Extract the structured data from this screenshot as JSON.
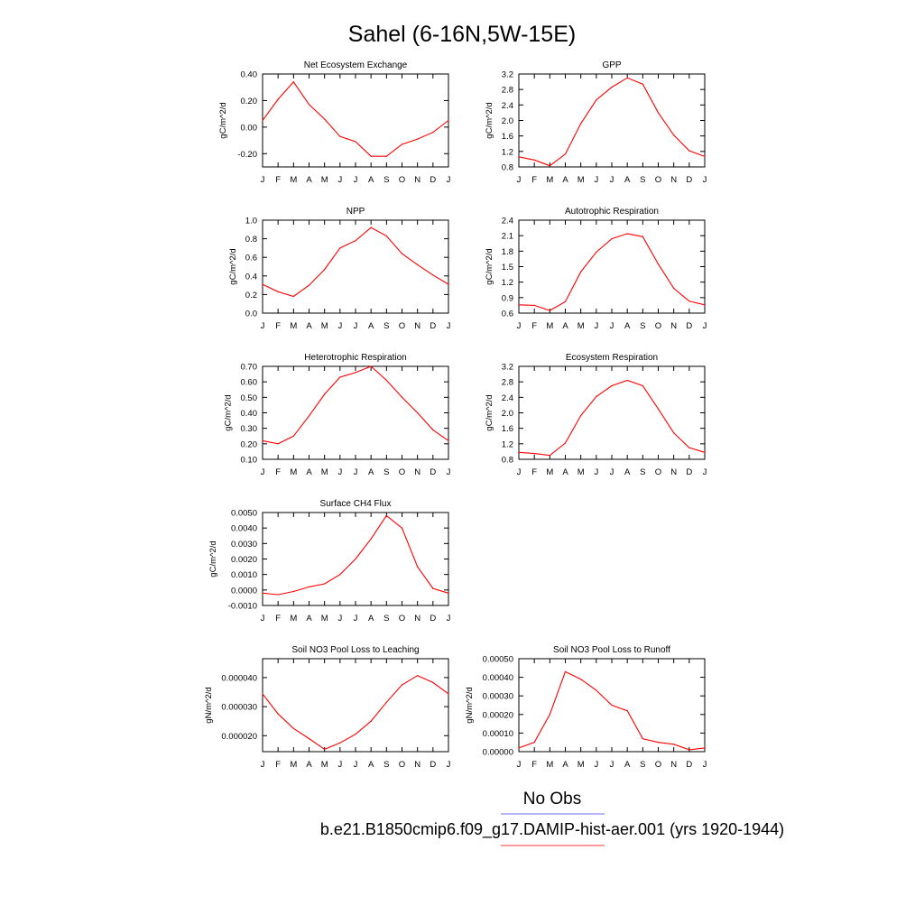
{
  "figure": {
    "title": "Sahel (6-16N,5W-15E)",
    "legend": [
      {
        "label": "No Obs",
        "color": "#6b6bff"
      },
      {
        "label": "b.e21.B1850cmip6.f09_g17.DAMIP-hist-aer.001 (yrs 1920-1944)",
        "color": "#ff3030"
      }
    ]
  },
  "chart_data": [
    {
      "type": "line",
      "title": "Net Ecosystem Exchange",
      "ylabel": "gC/m^2/d",
      "categories": [
        "J",
        "F",
        "M",
        "A",
        "M",
        "J",
        "J",
        "A",
        "S",
        "O",
        "N",
        "D",
        "J"
      ],
      "ylim": [
        -0.3,
        0.4
      ],
      "yticks": [
        "0.40",
        "0.20",
        "0.00",
        "-0.20"
      ],
      "series": [
        {
          "color": "#ff0000",
          "values": [
            0.05,
            0.21,
            0.34,
            0.17,
            0.06,
            -0.07,
            -0.11,
            -0.22,
            -0.22,
            -0.13,
            -0.09,
            -0.04,
            0.05
          ]
        }
      ]
    },
    {
      "type": "line",
      "title": "GPP",
      "ylabel": "gC/m^2/d",
      "categories": [
        "J",
        "F",
        "M",
        "A",
        "M",
        "J",
        "J",
        "A",
        "S",
        "O",
        "N",
        "D",
        "J"
      ],
      "ylim": [
        0.8,
        3.2
      ],
      "yticks": [
        "3.2",
        "2.8",
        "2.4",
        "2.0",
        "1.6",
        "1.2",
        "0.8"
      ],
      "series": [
        {
          "color": "#ff0000",
          "values": [
            1.06,
            0.98,
            0.83,
            1.13,
            1.92,
            2.53,
            2.86,
            3.1,
            2.94,
            2.2,
            1.62,
            1.22,
            1.07
          ]
        }
      ]
    },
    {
      "type": "line",
      "title": "NPP",
      "ylabel": "gC/m^2/d",
      "categories": [
        "J",
        "F",
        "M",
        "A",
        "M",
        "J",
        "J",
        "A",
        "S",
        "O",
        "N",
        "D",
        "J"
      ],
      "ylim": [
        0.0,
        1.0
      ],
      "yticks": [
        "1.0",
        "0.8",
        "0.6",
        "0.4",
        "0.2",
        "0.0"
      ],
      "series": [
        {
          "color": "#ff0000",
          "values": [
            0.31,
            0.23,
            0.18,
            0.3,
            0.47,
            0.7,
            0.78,
            0.92,
            0.83,
            0.64,
            0.52,
            0.41,
            0.31
          ]
        }
      ]
    },
    {
      "type": "line",
      "title": "Autotrophic Respiration",
      "ylabel": "gC/m^2/d",
      "categories": [
        "J",
        "F",
        "M",
        "A",
        "M",
        "J",
        "J",
        "A",
        "S",
        "O",
        "N",
        "D",
        "J"
      ],
      "ylim": [
        0.6,
        2.4
      ],
      "yticks": [
        "2.4",
        "2.1",
        "1.8",
        "1.5",
        "1.2",
        "0.9",
        "0.6"
      ],
      "series": [
        {
          "color": "#ff0000",
          "values": [
            0.76,
            0.75,
            0.65,
            0.82,
            1.4,
            1.78,
            2.04,
            2.14,
            2.08,
            1.55,
            1.08,
            0.83,
            0.76
          ]
        }
      ]
    },
    {
      "type": "line",
      "title": "Heterotrophic Respiration",
      "ylabel": "gC/m^2/d",
      "categories": [
        "J",
        "F",
        "M",
        "A",
        "M",
        "J",
        "J",
        "A",
        "S",
        "O",
        "N",
        "D",
        "J"
      ],
      "ylim": [
        0.1,
        0.7
      ],
      "yticks": [
        "0.70",
        "0.60",
        "0.50",
        "0.40",
        "0.30",
        "0.20",
        "0.10"
      ],
      "series": [
        {
          "color": "#ff0000",
          "values": [
            0.22,
            0.2,
            0.25,
            0.38,
            0.52,
            0.63,
            0.66,
            0.7,
            0.61,
            0.5,
            0.4,
            0.29,
            0.22
          ]
        }
      ]
    },
    {
      "type": "line",
      "title": "Ecosystem Respiration",
      "ylabel": "gC/m^2/d",
      "categories": [
        "J",
        "F",
        "M",
        "A",
        "M",
        "J",
        "J",
        "A",
        "S",
        "O",
        "N",
        "D",
        "J"
      ],
      "ylim": [
        0.8,
        3.2
      ],
      "yticks": [
        "3.2",
        "2.8",
        "2.4",
        "2.0",
        "1.6",
        "1.2",
        "0.8"
      ],
      "series": [
        {
          "color": "#ff0000",
          "values": [
            0.98,
            0.95,
            0.9,
            1.22,
            1.93,
            2.42,
            2.7,
            2.84,
            2.7,
            2.1,
            1.48,
            1.1,
            0.98
          ]
        }
      ]
    },
    {
      "type": "line",
      "title": "Surface CH4 Flux",
      "ylabel": "gC/m^2/d",
      "categories": [
        "J",
        "F",
        "M",
        "A",
        "M",
        "J",
        "J",
        "A",
        "S",
        "O",
        "N",
        "D",
        "J"
      ],
      "ylim": [
        -0.001,
        0.005
      ],
      "yticks": [
        "0.0050",
        "0.0040",
        "0.0030",
        "0.0020",
        "0.0010",
        "0.0000",
        "-0.0010"
      ],
      "series": [
        {
          "color": "#ff0000",
          "values": [
            -0.0002,
            -0.0003,
            -0.0001,
            0.0002,
            0.0004,
            0.001,
            0.002,
            0.0033,
            0.0048,
            0.004,
            0.0015,
            0.0001,
            -0.0002
          ]
        }
      ]
    },
    {
      "type": "line",
      "title": "Soil NO3 Pool Loss to Leaching",
      "ylabel": "gN/m^2/d",
      "categories": [
        "J",
        "F",
        "M",
        "A",
        "M",
        "J",
        "J",
        "A",
        "S",
        "O",
        "N",
        "D",
        "J"
      ],
      "ylim": [
        1.45e-05,
        4.65e-05
      ],
      "yticks": [
        "0.000040",
        "0.000030",
        "0.000020"
      ],
      "ytick_values": [
        4e-05,
        3e-05,
        2e-05
      ],
      "series": [
        {
          "color": "#ff0000",
          "values": [
            3.44e-05,
            2.75e-05,
            2.25e-05,
            1.9e-05,
            1.53e-05,
            1.75e-05,
            2.05e-05,
            2.5e-05,
            3.15e-05,
            3.75e-05,
            4.07e-05,
            3.83e-05,
            3.44e-05
          ]
        }
      ]
    },
    {
      "type": "line",
      "title": "Soil NO3 Pool Loss to Runoff",
      "ylabel": "gN/m^2/d",
      "categories": [
        "J",
        "F",
        "M",
        "A",
        "M",
        "J",
        "J",
        "A",
        "S",
        "O",
        "N",
        "D",
        "J"
      ],
      "ylim": [
        0.0,
        0.0005
      ],
      "yticks": [
        "0.00050",
        "0.00040",
        "0.00030",
        "0.00020",
        "0.00010",
        "0.00000"
      ],
      "series": [
        {
          "color": "#ff0000",
          "values": [
            2e-05,
            5e-05,
            0.0002,
            0.00043,
            0.00039,
            0.00033,
            0.00025,
            0.00022,
            7e-05,
            5e-05,
            4e-05,
            1e-05,
            2e-05
          ]
        }
      ]
    }
  ]
}
